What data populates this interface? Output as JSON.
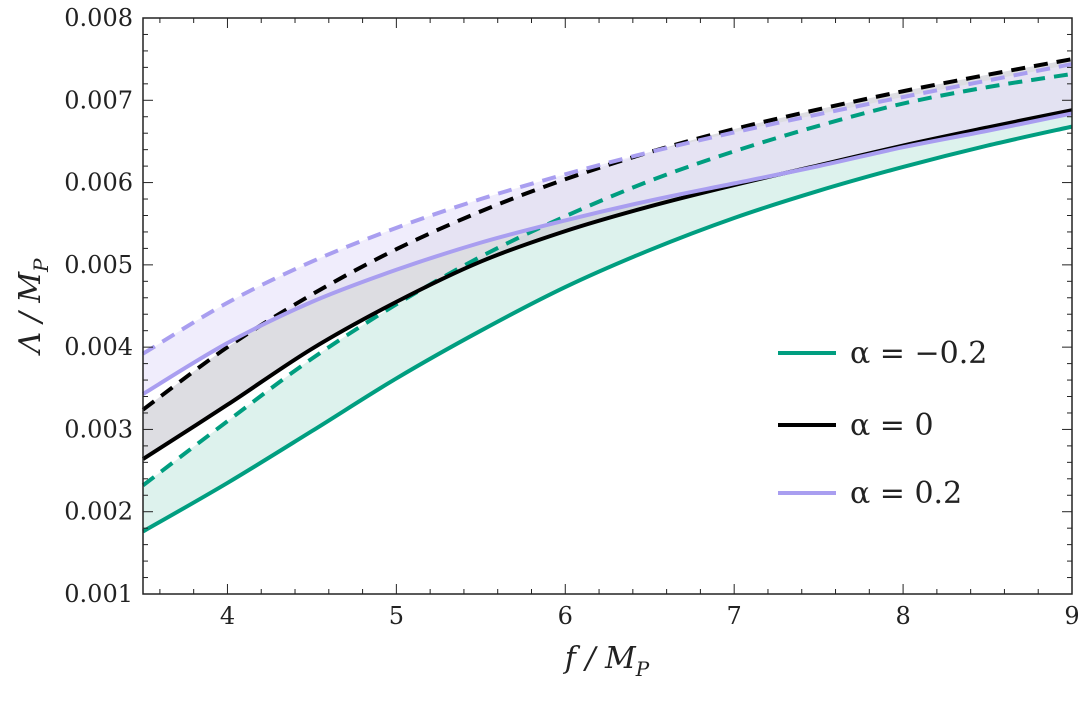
{
  "chart_data": {
    "type": "line",
    "title": "",
    "xlabel": "f / M_P",
    "ylabel": "Λ / M_P",
    "xlabel_parts": {
      "main": "f / M",
      "sub": "P"
    },
    "ylabel_parts": {
      "main": "Λ / M",
      "sub": "P"
    },
    "xlim": [
      3.5,
      9
    ],
    "ylim": [
      0.001,
      0.008
    ],
    "xticks": [
      4,
      5,
      6,
      7,
      8,
      9
    ],
    "xtick_labels": [
      "4",
      "5",
      "6",
      "7",
      "8",
      "9"
    ],
    "yticks": [
      0.001,
      0.002,
      0.003,
      0.004,
      0.005,
      0.006,
      0.007,
      0.008
    ],
    "ytick_labels": [
      "0.001",
      "0.002",
      "0.003",
      "0.004",
      "0.005",
      "0.006",
      "0.007",
      "0.008"
    ],
    "x": [
      3.5,
      4,
      4.5,
      5,
      5.5,
      6,
      6.5,
      7,
      7.5,
      8,
      8.5,
      9
    ],
    "series": [
      {
        "name": "α = −0.2",
        "key": "alpha-neg-0-2",
        "color": "#009e80",
        "fill": "#cfece6",
        "solid": [
          0.00176,
          0.00235,
          0.00298,
          0.00362,
          0.0042,
          0.00473,
          0.00518,
          0.00557,
          0.0059,
          0.00619,
          0.00645,
          0.00668
        ],
        "dashed": [
          0.00232,
          0.0031,
          0.00386,
          0.00452,
          0.0051,
          0.00559,
          0.00602,
          0.00638,
          0.00669,
          0.00696,
          0.00716,
          0.00732
        ]
      },
      {
        "name": "α = 0",
        "key": "alpha-0",
        "color": "#000000",
        "fill": "#cfcfd6",
        "solid": [
          0.00264,
          0.0033,
          0.00398,
          0.00455,
          0.00504,
          0.00541,
          0.00571,
          0.00597,
          0.00621,
          0.00645,
          0.00667,
          0.00688
        ],
        "dashed": [
          0.00324,
          0.004,
          0.00464,
          0.00519,
          0.00565,
          0.00604,
          0.00637,
          0.00665,
          0.00689,
          0.00711,
          0.00731,
          0.0075
        ]
      },
      {
        "name": "α = 0.2",
        "key": "alpha-0-2",
        "color": "#a99ef0",
        "fill": "#e9e6fb",
        "solid": [
          0.00343,
          0.00405,
          0.00455,
          0.00494,
          0.00527,
          0.00554,
          0.00578,
          0.00599,
          0.0062,
          0.00643,
          0.00663,
          0.00684
        ],
        "dashed": [
          0.00392,
          0.00454,
          0.00504,
          0.00545,
          0.0058,
          0.0061,
          0.00637,
          0.00661,
          0.00683,
          0.00704,
          0.00724,
          0.00744
        ]
      }
    ],
    "legend": {
      "position": "right-middle",
      "entries": [
        {
          "label": "α = −0.2",
          "color": "#009e80"
        },
        {
          "label": "α = 0",
          "color": "#000000"
        },
        {
          "label": "α = 0.2",
          "color": "#a99ef0"
        }
      ]
    },
    "grid": false
  }
}
